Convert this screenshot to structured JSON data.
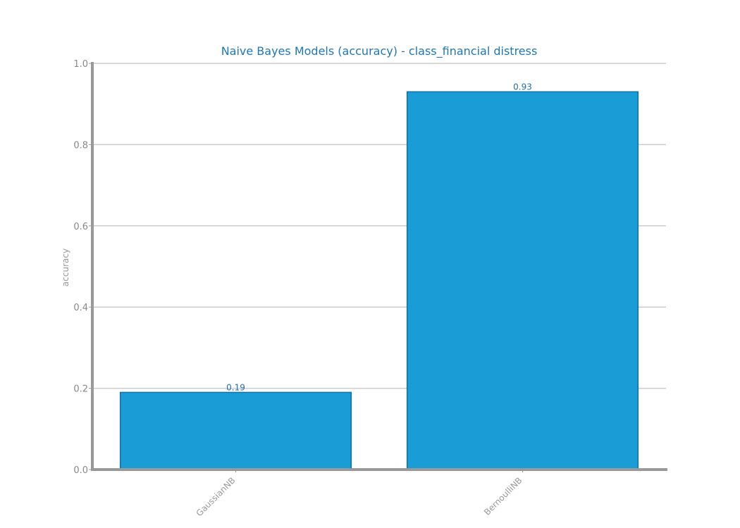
{
  "chart_data": {
    "type": "bar",
    "title": "Naive Bayes Models (accuracy) - class_financial distress",
    "xlabel": "",
    "ylabel": "accuracy",
    "categories": [
      "GaussianNB",
      "BernoulliNB"
    ],
    "values": [
      0.19,
      0.93
    ],
    "data_labels": [
      "0.19",
      "0.93"
    ],
    "ylim": [
      0,
      1.0
    ],
    "yticks": [
      "0.0",
      "0.2",
      "0.4",
      "0.6",
      "0.8",
      "1.0"
    ],
    "grid": "horizontal",
    "colors": {
      "bar_fill": "#1a9dd6",
      "bar_edge": "#0f6fa8",
      "title": "#1f77b4",
      "data_label": "#1f6fa8",
      "axis": "#999999",
      "grid": "#cccccc",
      "tick_text": "#888888"
    }
  }
}
